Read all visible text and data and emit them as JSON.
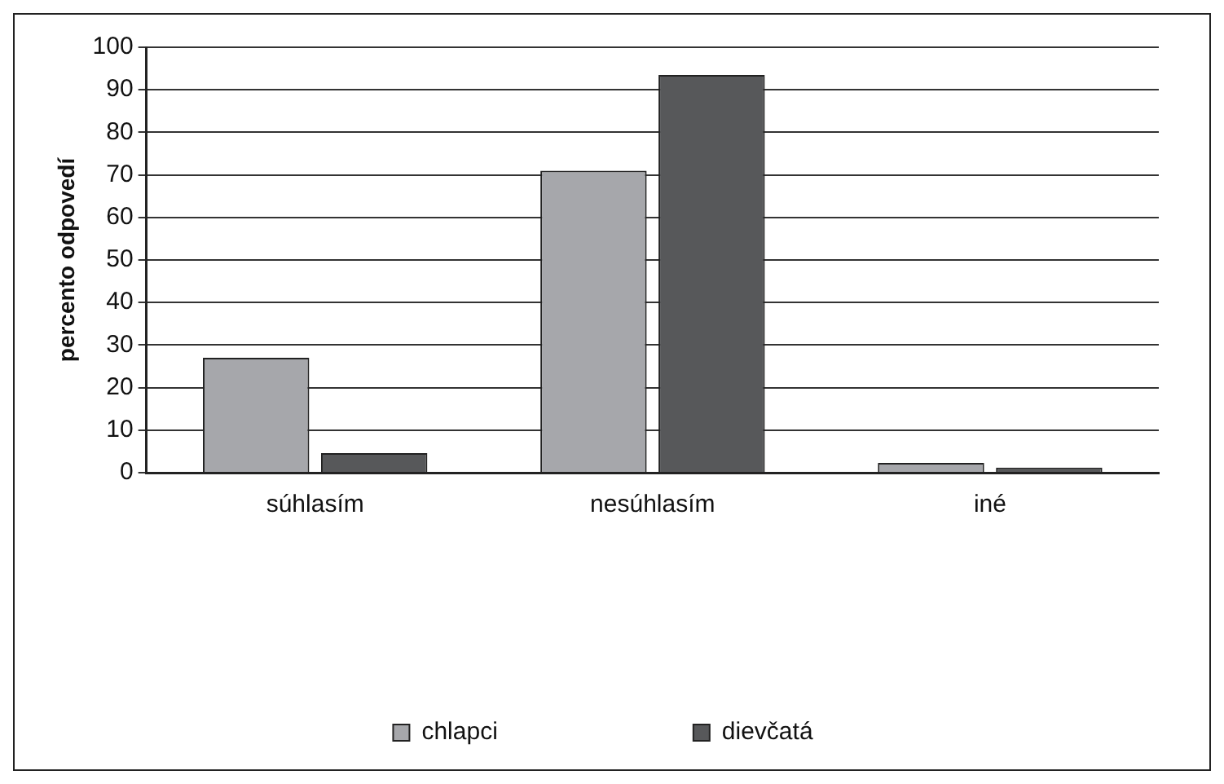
{
  "chart_data": {
    "type": "bar",
    "ylabel": "percento odpovedí",
    "categories": [
      "súhlasím",
      "nesúhlasím",
      "iné"
    ],
    "series": [
      {
        "name": "chlapci",
        "color": "#a6a7ab",
        "values": [
          27,
          71,
          2.3
        ]
      },
      {
        "name": "dievčatá",
        "color": "#57585a",
        "values": [
          4.6,
          93.5,
          1.2
        ]
      }
    ],
    "ylim": [
      0,
      100
    ],
    "yticks": [
      0,
      10,
      20,
      30,
      40,
      50,
      60,
      70,
      80,
      90,
      100
    ],
    "grid": "y",
    "legend": "bottom"
  }
}
